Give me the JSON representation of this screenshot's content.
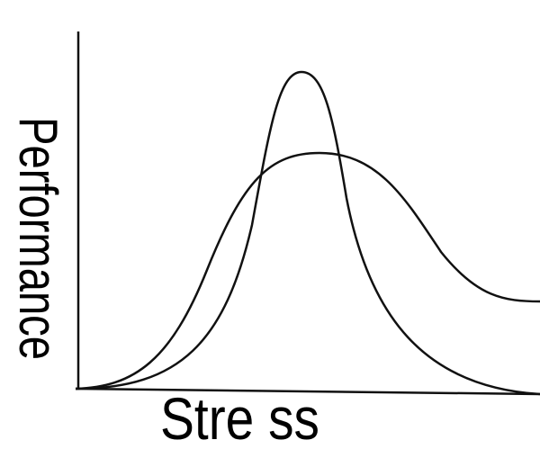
{
  "axes": {
    "x_label": "Stre ss",
    "y_label": "Performance"
  }
}
